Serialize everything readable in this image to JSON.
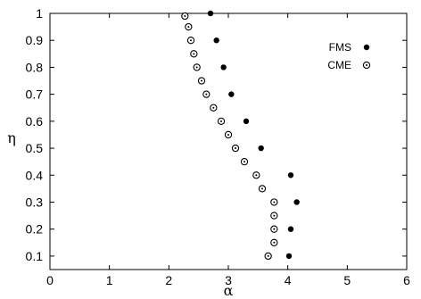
{
  "chart_data": {
    "type": "scatter",
    "title": "",
    "xlabel": "α",
    "ylabel": "η",
    "xlim": [
      0,
      6
    ],
    "ylim": [
      0.05,
      1.0
    ],
    "xticks": [
      0,
      1,
      2,
      3,
      4,
      5,
      6
    ],
    "yticks": [
      0.1,
      0.2,
      0.3,
      0.4,
      0.5,
      0.6,
      0.7,
      0.8,
      0.9,
      1
    ],
    "xtick_labels": [
      "0",
      "1",
      "2",
      "3",
      "4",
      "5",
      "6"
    ],
    "ytick_labels": [
      "0.1",
      "0.2",
      "0.3",
      "0.4",
      "0.5",
      "0.6",
      "0.7",
      "0.8",
      "0.9",
      "1"
    ],
    "grid": false,
    "legend_position": "top-right",
    "series": [
      {
        "name": "FMS",
        "marker": "filled-circle",
        "color": "#000000",
        "x": [
          2.7,
          2.8,
          2.92,
          3.05,
          3.3,
          3.55,
          4.05,
          4.15,
          4.05,
          4.02
        ],
        "y": [
          1.0,
          0.9,
          0.8,
          0.7,
          0.6,
          0.5,
          0.4,
          0.3,
          0.2,
          0.1
        ]
      },
      {
        "name": "CME",
        "marker": "circle-dot",
        "color": "#000000",
        "x": [
          2.27,
          2.33,
          2.37,
          2.42,
          2.47,
          2.55,
          2.63,
          2.75,
          2.88,
          3.0,
          3.12,
          3.27,
          3.47,
          3.57,
          3.77,
          3.77,
          3.77,
          3.77,
          3.67
        ],
        "y": [
          0.99,
          0.95,
          0.9,
          0.85,
          0.8,
          0.75,
          0.7,
          0.65,
          0.6,
          0.55,
          0.5,
          0.45,
          0.4,
          0.35,
          0.3,
          0.25,
          0.2,
          0.15,
          0.1
        ]
      }
    ]
  }
}
